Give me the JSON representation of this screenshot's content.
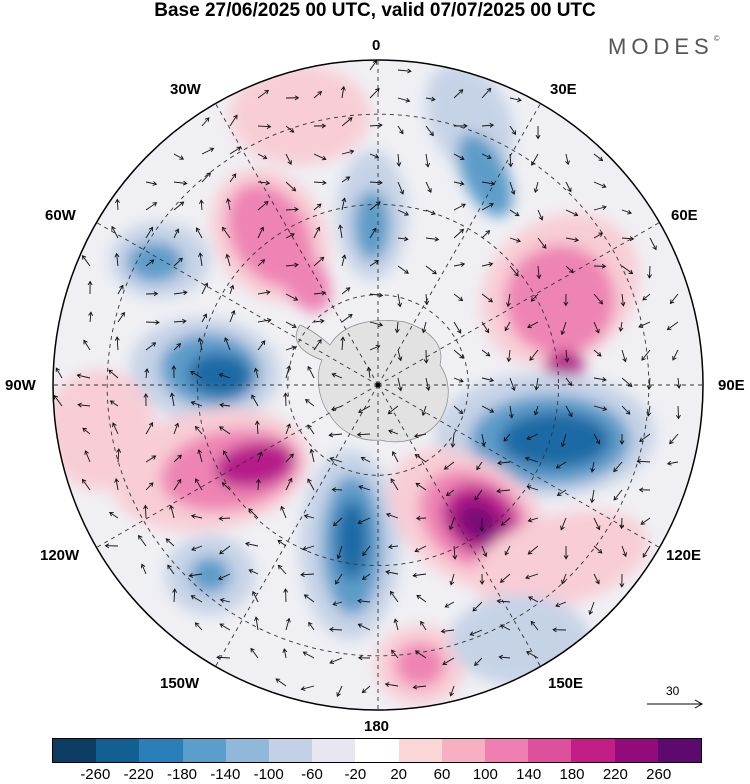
{
  "title": "Base 27/06/2025 00 UTC, valid 07/07/2025 00 UTC",
  "brand": "MODES",
  "brand_mark": "©",
  "longitude_labels": {
    "n0": "0",
    "e30": "30E",
    "e60": "60E",
    "e90": "90E",
    "e120": "120E",
    "e150": "150E",
    "s180": "180",
    "w150": "150W",
    "w120": "120W",
    "w90": "90W",
    "w60": "60W",
    "w30": "30W"
  },
  "reference_vector": "30",
  "colorbar": {
    "colors": [
      "#0b3d63",
      "#125f93",
      "#2a7fb8",
      "#5a9fcb",
      "#8fb8d9",
      "#c4d0e6",
      "#e7e6f1",
      "#ffffff",
      "#fbd6d6",
      "#f6b0c2",
      "#ef7fb0",
      "#de4f9c",
      "#c21f86",
      "#930a7a",
      "#5d0a6e"
    ],
    "ticks": [
      "-260",
      "-220",
      "-180",
      "-140",
      "-100",
      "-60",
      "-20",
      "20",
      "60",
      "100",
      "140",
      "180",
      "220",
      "260"
    ]
  },
  "map": {
    "projection": "south polar stereographic",
    "anomaly_colors": {
      "strong_negative": "#1f6aa5",
      "moderate_negative": "#5d9cc9",
      "weak_negative": "#c6d3e7",
      "weak_positive": "#f8cdd5",
      "moderate_positive": "#ee84b4",
      "strong_positive": "#b51c8a",
      "extreme_positive": "#7a0d78",
      "land_shade": "#e2e2e2"
    }
  }
}
